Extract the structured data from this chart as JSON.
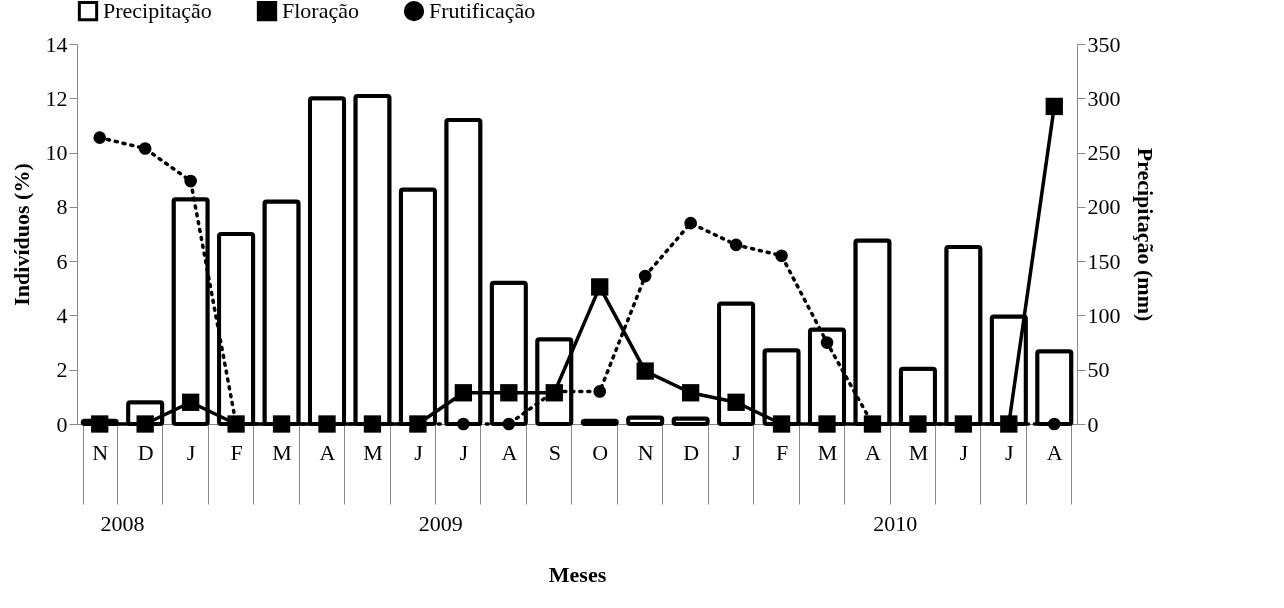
{
  "chart_data": {
    "type": "bar",
    "xlabel": "Meses",
    "ylabel": "Indivíduos (%)",
    "y2label": "Precipitação (mm)",
    "categories": [
      "N",
      "D",
      "J",
      "F",
      "M",
      "A",
      "M",
      "J",
      "J",
      "A",
      "S",
      "O",
      "N",
      "D",
      "J",
      "F",
      "M",
      "A",
      "M",
      "J",
      "J",
      "A"
    ],
    "series": [
      {
        "name": "Precipitação",
        "axis": "y2",
        "color": "#000000",
        "values": [
          3,
          20,
          207,
          175,
          205,
          300,
          302,
          216,
          280,
          130,
          78,
          3,
          6,
          5,
          111,
          68,
          87,
          169,
          51,
          163,
          99,
          67
        ]
      },
      {
        "name": "Floração",
        "type": "line",
        "color": "#000000",
        "marker": "square",
        "line_style": "solid",
        "values": [
          0,
          0,
          0.8,
          0,
          0,
          0,
          0,
          0,
          1.15,
          1.15,
          1.15,
          5.05,
          1.95,
          1.15,
          0.8,
          0,
          0,
          0,
          0,
          0,
          0,
          11.7
        ]
      },
      {
        "name": "Frutificação",
        "type": "line",
        "color": "#000000",
        "marker": "circle",
        "line_style": "dotted",
        "values": [
          10.55,
          10.15,
          8.95,
          0,
          0,
          0,
          0,
          0,
          0,
          0,
          1.2,
          1.2,
          5.45,
          7.4,
          6.6,
          6.2,
          3.0,
          0,
          0,
          0,
          0,
          0
        ]
      }
    ],
    "ylim": [
      0,
      14
    ],
    "yticks": [
      0,
      2,
      4,
      6,
      8,
      10,
      12,
      14
    ],
    "y2lim": [
      0,
      350
    ],
    "y2ticks": [
      0,
      50,
      100,
      150,
      200,
      250,
      300,
      350
    ],
    "annotations": [
      "2008",
      "2009",
      "2010"
    ],
    "grid": false,
    "legend": "top"
  }
}
